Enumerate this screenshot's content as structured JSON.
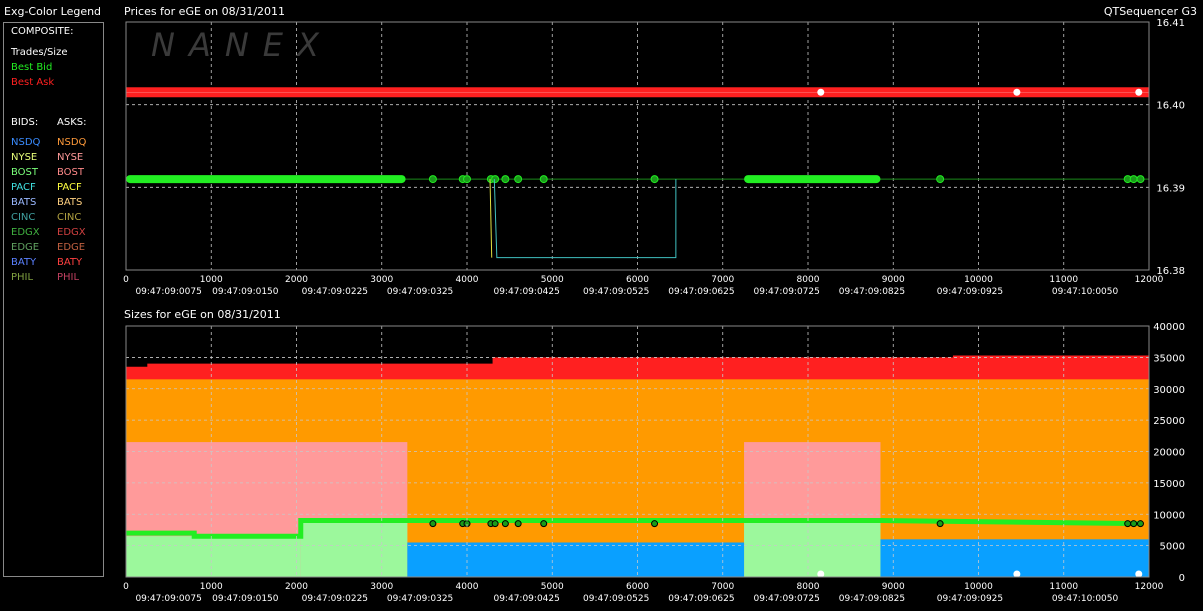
{
  "legend": {
    "title": "Exg-Color Legend",
    "composite_label": "COMPOSITE:",
    "trades_label": "Trades/Size",
    "best_bid_label": "Best Bid",
    "best_ask_label": "Best Ask",
    "bids_header": "BIDS:",
    "asks_header": "ASKS:",
    "exchanges": [
      {
        "bid": "NSDQ",
        "ask": "NSDQ",
        "bid_color": "#3a8cff",
        "ask_color": "#ff9a3a"
      },
      {
        "bid": "NYSE",
        "ask": "NYSE",
        "bid_color": "#e8ff7a",
        "ask_color": "#ff9a9a"
      },
      {
        "bid": "BOST",
        "ask": "BOST",
        "bid_color": "#7aff7a",
        "ask_color": "#ff8a8a"
      },
      {
        "bid": "PACF",
        "ask": "PACF",
        "bid_color": "#40e0e0",
        "ask_color": "#ffff40"
      },
      {
        "bid": "BATS",
        "ask": "BATS",
        "bid_color": "#9ab8ff",
        "ask_color": "#ffd080"
      },
      {
        "bid": "CINC",
        "ask": "CINC",
        "bid_color": "#40a0a0",
        "ask_color": "#b0a040"
      },
      {
        "bid": "EDGX",
        "ask": "EDGX",
        "bid_color": "#40b040",
        "ask_color": "#d04040"
      },
      {
        "bid": "EDGE",
        "ask": "EDGE",
        "bid_color": "#60a060",
        "ask_color": "#c06040"
      },
      {
        "bid": "BATY",
        "ask": "BATY",
        "bid_color": "#5a80ff",
        "ask_color": "#ff4040"
      },
      {
        "bid": "PHIL",
        "ask": "PHIL",
        "bid_color": "#80a040",
        "ask_color": "#c04060"
      }
    ]
  },
  "header": {
    "price_title": "Prices for  eGE  on  08/31/2011",
    "app_name": "QTSequencer G3",
    "watermark": "NANEX",
    "size_title": "Sizes for  eGE  on  08/31/2011"
  },
  "colors": {
    "best_bid": "#22ee22",
    "best_ask": "#ff2020",
    "trade": "#ffffff",
    "nsdq_ask": "#ff9a00",
    "nyse_ask": "#ff9a9a",
    "nsdq_bid": "#0aa0ff",
    "bost_bid": "#9cf89c",
    "grid": "#c8c8c8"
  },
  "chart_data": [
    {
      "type": "line",
      "title": "Prices for  eGE  on  08/31/2011",
      "xlim": [
        0,
        12000
      ],
      "ylim": [
        16.38,
        16.41
      ],
      "y_ticks": [
        "16.41",
        "16.40",
        "16.39",
        "16.38"
      ],
      "y_tick_values": [
        16.41,
        16.4,
        16.39,
        16.38
      ],
      "x_ticks": [
        "0",
        "1000",
        "2000",
        "3000",
        "4000",
        "5000",
        "6000",
        "7000",
        "8000",
        "9000",
        "10000",
        "11000",
        "12000"
      ],
      "x_tick_values": [
        0,
        1000,
        2000,
        3000,
        4000,
        5000,
        6000,
        7000,
        8000,
        9000,
        10000,
        11000,
        12000
      ],
      "time_labels": [
        "09:47:09:0075",
        "09:47:09:0150",
        "09:47:09:0225",
        "09:47:09:0325",
        "09:47:09:0425",
        "09:47:09:0525",
        "09:47:09:0625",
        "09:47:09:0725",
        "09:47:09:0825",
        "09:47:09:0925",
        "09:47:10:0050"
      ],
      "time_label_x": [
        500,
        1400,
        2450,
        3450,
        4700,
        5750,
        6750,
        7750,
        8750,
        9900,
        11250
      ],
      "series": [
        {
          "name": "Best Ask",
          "values": [
            [
              0,
              16.4015
            ],
            [
              12000,
              16.4015
            ]
          ]
        },
        {
          "name": "Best Bid",
          "segments": [
            [
              0,
              3280
            ],
            [
              7250,
              8850
            ]
          ],
          "level": 16.391,
          "points": [
            3600,
            3950,
            4000,
            4280,
            4330,
            4450,
            4600,
            4900,
            6200,
            9550,
            11750,
            11820,
            11900
          ]
        },
        {
          "name": "BATS bid dip",
          "values": [
            [
              4320,
              16.391
            ],
            [
              4350,
              16.3815
            ],
            [
              6450,
              16.3815
            ],
            [
              6450,
              16.391
            ]
          ]
        },
        {
          "name": "PACF bid dip",
          "values": [
            [
              4270,
              16.391
            ],
            [
              4290,
              16.3815
            ]
          ]
        },
        {
          "name": "Trades/Size",
          "values": [
            [
              8150,
              16.4015
            ],
            [
              10450,
              16.4015
            ],
            [
              11880,
              16.4015
            ]
          ]
        }
      ]
    },
    {
      "type": "area",
      "title": "Sizes for  eGE  on  08/31/2011",
      "xlim": [
        0,
        12000
      ],
      "ylim": [
        0,
        40000
      ],
      "y_ticks": [
        "40000",
        "35000",
        "30000",
        "25000",
        "20000",
        "15000",
        "10000",
        "5000",
        "0"
      ],
      "y_tick_values": [
        40000,
        35000,
        30000,
        25000,
        20000,
        15000,
        10000,
        5000,
        0
      ],
      "x_ticks": [
        "0",
        "1000",
        "2000",
        "3000",
        "4000",
        "5000",
        "6000",
        "7000",
        "8000",
        "9000",
        "10000",
        "11000",
        "12000"
      ],
      "x_tick_values": [
        0,
        1000,
        2000,
        3000,
        4000,
        5000,
        6000,
        7000,
        8000,
        9000,
        10000,
        11000,
        12000
      ],
      "time_labels": [
        "09:47:09:0075",
        "09:47:09:0150",
        "09:47:09:0225",
        "09:47:09:0325",
        "09:47:09:0425",
        "09:47:09:0525",
        "09:47:09:0625",
        "09:47:09:0725",
        "09:47:09:0825",
        "09:47:09:0925",
        "09:47:10:0050"
      ],
      "time_label_x": [
        500,
        1400,
        2450,
        3450,
        4700,
        5750,
        6750,
        7750,
        8750,
        9900,
        11250
      ],
      "series": [
        {
          "name": "Best Ask",
          "values": [
            [
              0,
              33500
            ],
            [
              250,
              33500
            ],
            [
              250,
              34000
            ],
            [
              4300,
              34000
            ],
            [
              4300,
              35000
            ],
            [
              9700,
              35000
            ],
            [
              9700,
              35300
            ],
            [
              12000,
              35300
            ]
          ]
        },
        {
          "name": "NSDQ ask",
          "values": [
            [
              0,
              31500
            ],
            [
              12000,
              31500
            ]
          ]
        },
        {
          "name": "NYSE ask",
          "segments": [
            [
              0,
              3300,
              21500
            ],
            [
              7250,
              8850,
              21500
            ]
          ]
        },
        {
          "name": "Best Bid",
          "values": [
            [
              0,
              7000
            ],
            [
              800,
              7000
            ],
            [
              800,
              6500
            ],
            [
              2050,
              6500
            ],
            [
              2050,
              9000
            ],
            [
              3300,
              9000
            ],
            [
              7250,
              9000
            ],
            [
              8850,
              9000
            ],
            [
              11900,
              8500
            ]
          ]
        },
        {
          "name": "BOST bid",
          "segments": [
            [
              0,
              2050,
              6500
            ],
            [
              2050,
              3300,
              9000
            ],
            [
              7250,
              8850,
              9000
            ]
          ]
        },
        {
          "name": "NSDQ bid",
          "segments": [
            [
              3300,
              7250,
              5500
            ],
            [
              8850,
              12000,
              6000
            ]
          ]
        }
      ]
    }
  ]
}
